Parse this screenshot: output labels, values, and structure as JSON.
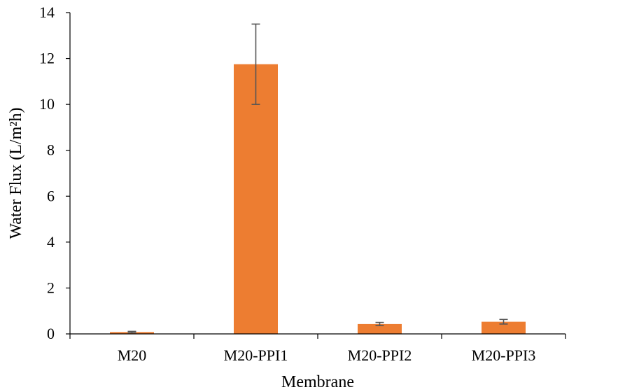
{
  "chart_data": {
    "type": "bar",
    "categories": [
      "M20",
      "M20-PPI1",
      "M20-PPI2",
      "M20-PPI3"
    ],
    "series": [
      {
        "values": [
          0.08,
          11.75,
          0.43,
          0.53
        ],
        "errors": [
          0.03,
          1.75,
          0.07,
          0.1
        ],
        "color": "#ED7D31"
      }
    ],
    "xlabel": "Membrane",
    "ylabel": "Water Flux (L/m²h)",
    "ylim": [
      0,
      14
    ],
    "yticks": [
      0,
      2,
      4,
      6,
      8,
      10,
      12,
      14
    ],
    "grid": false,
    "error_bar_color": "#555555"
  }
}
